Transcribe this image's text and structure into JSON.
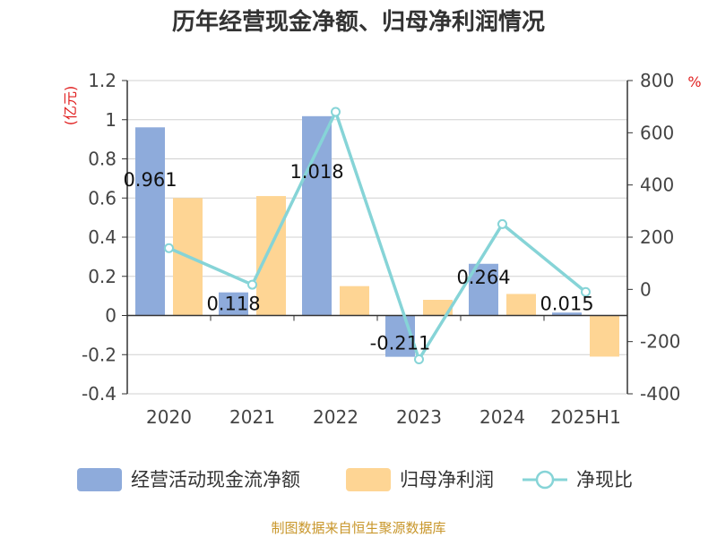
{
  "chart_data": {
    "type": "bar",
    "title": "历年经营现金净额、归母净利润情况",
    "categories": [
      "2020",
      "2021",
      "2022",
      "2023",
      "2024",
      "2025H1"
    ],
    "series": [
      {
        "name": "经营活动现金流净额",
        "type": "bar",
        "axis": "left",
        "color": "#8eabdb",
        "values": [
          0.961,
          0.118,
          1.018,
          -0.211,
          0.264,
          0.015
        ],
        "labels": [
          "0.961",
          "0.118",
          "1.018",
          "-0.211",
          "0.264",
          "0.015"
        ]
      },
      {
        "name": "归母净利润",
        "type": "bar",
        "axis": "left",
        "color": "#fed594",
        "values": [
          0.6,
          0.61,
          0.15,
          0.08,
          0.11,
          -0.21
        ]
      },
      {
        "name": "净现比",
        "type": "line",
        "axis": "right",
        "color": "#86d4d7",
        "values": [
          158,
          18,
          680,
          -268,
          250,
          -10
        ]
      }
    ],
    "y_left": {
      "unit": "(亿元)",
      "min": -0.4,
      "max": 1.2,
      "ticks": [
        "-0.4",
        "-0.2",
        "0",
        "0.2",
        "0.4",
        "0.6",
        "0.8",
        "1",
        "1.2"
      ]
    },
    "y_right": {
      "unit": "%",
      "min": -400,
      "max": 800,
      "ticks": [
        "-400",
        "-200",
        "0",
        "200",
        "400",
        "600",
        "800"
      ]
    },
    "grid": true,
    "legend": "bottom"
  },
  "source": "制图数据来自恒生聚源数据库"
}
